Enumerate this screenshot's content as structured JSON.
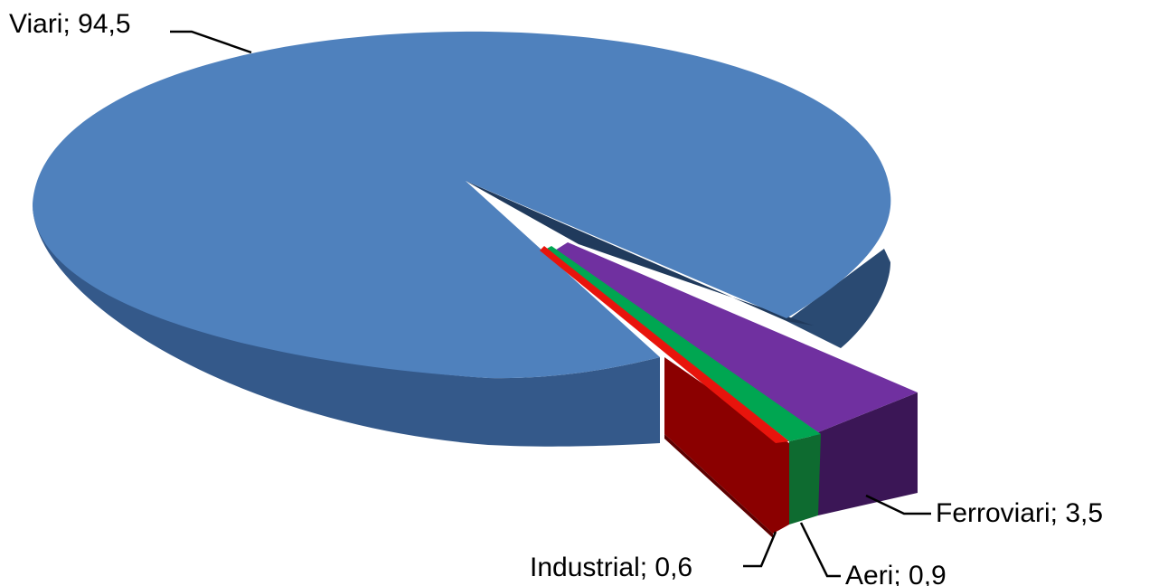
{
  "chart_data": {
    "type": "pie",
    "style": "3d-exploded",
    "title": "",
    "slices": [
      {
        "label": "Viari",
        "value": 94.5,
        "display": "94,5",
        "color": "#4F81BD"
      },
      {
        "label": "Industrial",
        "value": 0.6,
        "display": "0,6",
        "color": "#E8140C"
      },
      {
        "label": "Aeri",
        "value": 0.9,
        "display": "0,9",
        "color": "#00A651"
      },
      {
        "label": "Ferroviari",
        "value": 3.5,
        "display": "3,5",
        "color": "#7030A0"
      }
    ],
    "data_labels": [
      "Viari; 94,5",
      "Industrial; 0,6",
      "Aeri; 0,9",
      "Ferroviari; 3,5"
    ]
  }
}
